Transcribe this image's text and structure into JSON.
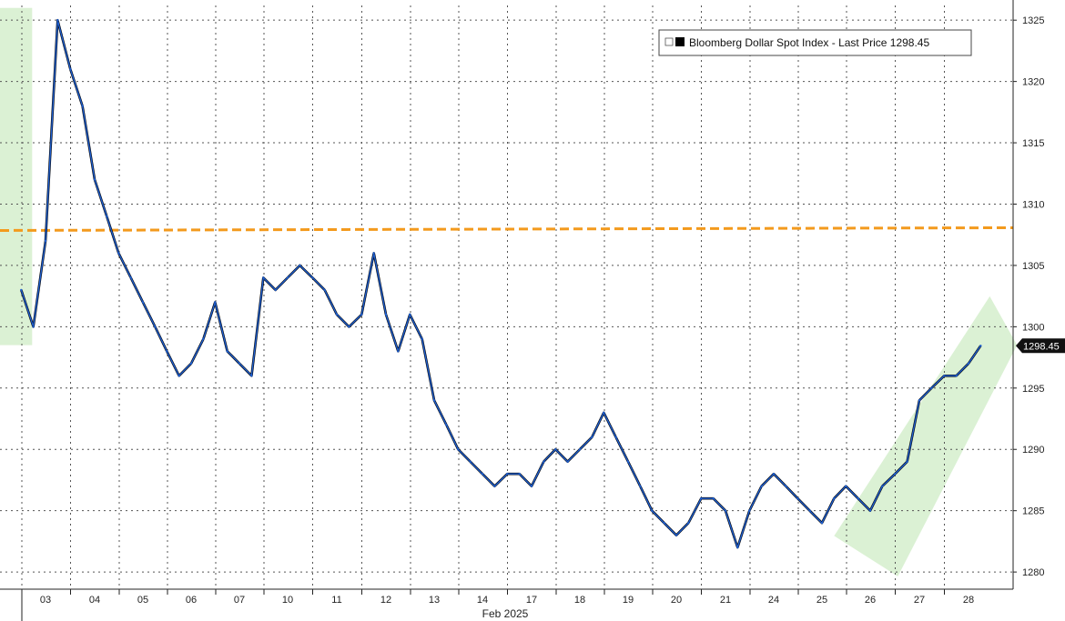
{
  "chart_data": {
    "type": "line",
    "series": [
      {
        "name": "Bloomberg Dollar Spot Index - Last Price",
        "last_value_label": "1298.45",
        "color": "#1f5fd0",
        "x": [
          "03 00:00",
          "03 06:00",
          "03 12:00",
          "03 18:00",
          "04 00:00",
          "04 06:00",
          "04 12:00",
          "04 18:00",
          "05 00:00",
          "05 06:00",
          "05 12:00",
          "05 18:00",
          "06 00:00",
          "06 06:00",
          "06 12:00",
          "06 18:00",
          "07 00:00",
          "07 06:00",
          "07 12:00",
          "07 18:00",
          "10 00:00",
          "10 06:00",
          "10 12:00",
          "10 18:00",
          "11 00:00",
          "11 06:00",
          "11 12:00",
          "11 18:00",
          "12 00:00",
          "12 06:00",
          "12 12:00",
          "12 18:00",
          "13 00:00",
          "13 06:00",
          "13 12:00",
          "13 18:00",
          "14 00:00",
          "14 06:00",
          "14 12:00",
          "14 18:00",
          "17 00:00",
          "17 06:00",
          "17 12:00",
          "17 18:00",
          "18 00:00",
          "18 06:00",
          "18 12:00",
          "18 18:00",
          "19 00:00",
          "19 06:00",
          "19 12:00",
          "19 18:00",
          "20 00:00",
          "20 06:00",
          "20 12:00",
          "20 18:00",
          "21 00:00",
          "21 06:00",
          "21 12:00",
          "21 18:00",
          "24 00:00",
          "24 06:00",
          "24 12:00",
          "24 18:00",
          "25 00:00",
          "25 06:00",
          "25 12:00",
          "25 18:00",
          "26 00:00",
          "26 06:00",
          "26 12:00",
          "26 18:00",
          "27 00:00",
          "27 06:00",
          "27 12:00",
          "27 18:00",
          "28 00:00",
          "28 06:00",
          "28 12:00",
          "28 18:00"
        ],
        "values": [
          1303,
          1300,
          1307,
          1325,
          1321,
          1318,
          1312,
          1309,
          1306,
          1304,
          1302,
          1300,
          1298,
          1296,
          1297,
          1299,
          1302,
          1298,
          1297,
          1296,
          1304,
          1303,
          1304,
          1305,
          1304,
          1303,
          1301,
          1300,
          1301,
          1306,
          1301,
          1298,
          1301,
          1299,
          1294,
          1292,
          1290,
          1289,
          1288,
          1287,
          1288,
          1288,
          1287,
          1289,
          1290,
          1289,
          1290,
          1291,
          1293,
          1291,
          1289,
          1287,
          1285,
          1284,
          1283,
          1284,
          1286,
          1286,
          1285,
          1282,
          1285,
          1287,
          1288,
          1287,
          1286,
          1285,
          1284,
          1286,
          1287,
          1286,
          1285,
          1287,
          1288,
          1289,
          1294,
          1295,
          1296,
          1296,
          1297,
          1298.45
        ]
      }
    ],
    "ylim": [
      1278,
      1326
    ],
    "y_ticks": [
      "1280",
      "1285",
      "1290",
      "1295",
      "1300",
      "1305",
      "1310",
      "1315",
      "1320",
      "1325"
    ],
    "x_ticks": [
      "03",
      "04",
      "05",
      "06",
      "07",
      "10",
      "11",
      "12",
      "13",
      "14",
      "17",
      "18",
      "19",
      "20",
      "21",
      "24",
      "25",
      "26",
      "27",
      "28"
    ],
    "x_axis_month_label": "Feb 2025",
    "reference_line": {
      "value": 1308,
      "color": "#f39a1d",
      "style": "dashed"
    },
    "highlights": [
      {
        "kind": "rect",
        "x_start": "02 12:00",
        "x_end": "03 00:00",
        "y_range": [
          1298.5,
          1326
        ],
        "color": "#d7efcf"
      },
      {
        "kind": "channel",
        "x_start": "25 18:00",
        "x_end": "28 18:00",
        "from_y": [
          1279.5,
          1282.5
        ],
        "to_y": [
          1301,
          1298.5
        ],
        "color": "#d7efcf"
      }
    ],
    "grid": true,
    "legend": {
      "placement": "top-right",
      "label": "Bloomberg Dollar Spot Index - Last Price 1298.45"
    },
    "axis_position": "right",
    "title": "",
    "xlabel": "",
    "ylabel": ""
  }
}
